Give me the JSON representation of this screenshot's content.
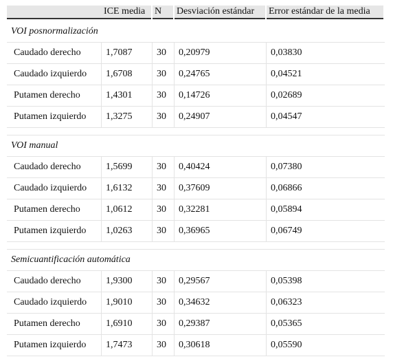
{
  "table": {
    "header": [
      "ICE media",
      "N",
      "Desviación estándar",
      "Error estándar de la media"
    ],
    "sections": [
      {
        "title": "VOI posnormalización",
        "rows": [
          [
            "Caudado derecho",
            "1,7087",
            "30",
            "0,20979",
            "0,03830"
          ],
          [
            "Caudado izquierdo",
            "1,6708",
            "30",
            "0,24765",
            "0,04521"
          ],
          [
            "Putamen derecho",
            "1,4301",
            "30",
            "0,14726",
            "0,02689"
          ],
          [
            "Putamen izquierdo",
            "1,3275",
            "30",
            "0,24907",
            "0,04547"
          ]
        ]
      },
      {
        "title": "VOI manual",
        "rows": [
          [
            "Caudado derecho",
            "1,5699",
            "30",
            "0,40424",
            "0,07380"
          ],
          [
            "Caudado izquierdo",
            "1,6132",
            "30",
            "0,37609",
            "0,06866"
          ],
          [
            "Putamen derecho",
            "1,0612",
            "30",
            "0,32281",
            "0,05894"
          ],
          [
            "Putamen izquierdo",
            "1,0263",
            "30",
            "0,36965",
            "0,06749"
          ]
        ]
      },
      {
        "title": "Semicuantificación automática",
        "rows": [
          [
            "Caudado derecho",
            "1,9300",
            "30",
            "0,29567",
            "0,05398"
          ],
          [
            "Caudado izquierdo",
            "1,9010",
            "30",
            "0,34632",
            "0,06323"
          ],
          [
            "Putamen derecho",
            "1,6910",
            "30",
            "0,29387",
            "0,05365"
          ],
          [
            "Putamen izquierdo",
            "1,7473",
            "30",
            "0,30618",
            "0,05590"
          ]
        ]
      }
    ]
  }
}
